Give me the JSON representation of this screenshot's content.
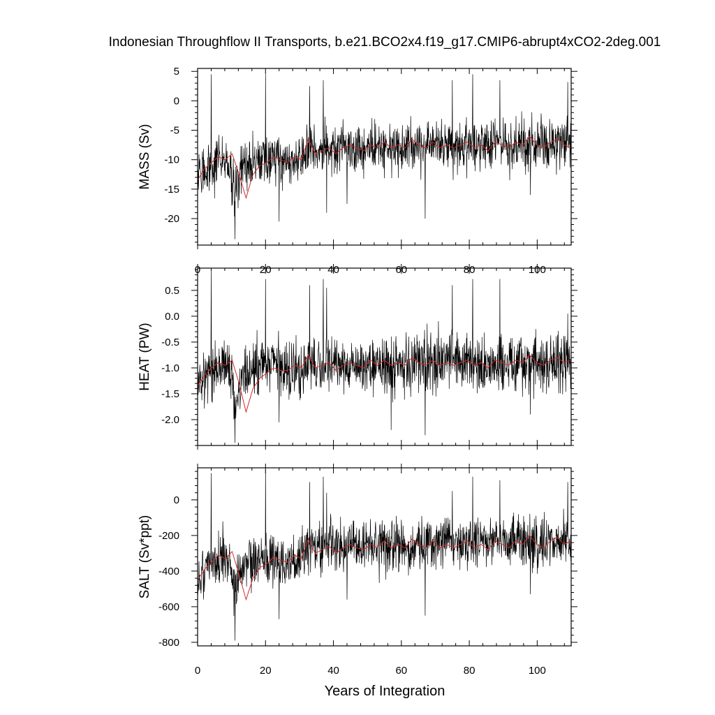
{
  "title": "Indonesian Throughflow II Transports, b.e21.BCO2x4.f19_g17.CMIP6-abrupt4xCO2-2deg.001",
  "xlabel": "Years of Integration",
  "colors": {
    "monthly": "#000000",
    "annual": "#d62728"
  },
  "chart_data": [
    {
      "type": "line",
      "ylabel": "MASS (Sv)",
      "xlim": [
        0,
        110
      ],
      "ylim": [
        -24.5,
        5.5
      ],
      "xticks": [
        0,
        20,
        40,
        60,
        80,
        100
      ],
      "xtick_labels": [
        "0",
        "20",
        "40",
        "60",
        "80",
        "100"
      ],
      "yticks": [
        5,
        0,
        -5,
        -10,
        -15,
        -20
      ],
      "ytick_labels": [
        "5",
        "0",
        "-5",
        "-10",
        "-15",
        "-20"
      ],
      "baseline": [
        [
          0,
          -13.5
        ],
        [
          2,
          -11.5
        ],
        [
          5,
          -10.5
        ],
        [
          8,
          -9.5
        ],
        [
          10,
          -12.5
        ],
        [
          11,
          -16.5
        ],
        [
          12,
          -13
        ],
        [
          14,
          -11
        ],
        [
          17,
          -10.5
        ],
        [
          20,
          -9.5
        ],
        [
          25,
          -10.5
        ],
        [
          30,
          -9.5
        ],
        [
          35,
          -8.5
        ],
        [
          40,
          -8
        ],
        [
          50,
          -8
        ],
        [
          60,
          -8
        ],
        [
          70,
          -7.5
        ],
        [
          80,
          -7.5
        ],
        [
          90,
          -7.5
        ],
        [
          100,
          -7.5
        ],
        [
          110,
          -7
        ]
      ],
      "amplitude": 3.3,
      "spikes": [
        [
          4,
          4.5
        ],
        [
          11,
          -23.5
        ],
        [
          20,
          4.5
        ],
        [
          24,
          -20.5
        ],
        [
          33,
          2.5
        ],
        [
          37,
          3.5
        ],
        [
          38,
          -19
        ],
        [
          44,
          -17.5
        ],
        [
          67,
          -20
        ],
        [
          75,
          3.5
        ],
        [
          81,
          4.5
        ],
        [
          89,
          3.5
        ],
        [
          98,
          -16
        ],
        [
          109,
          3.2
        ]
      ],
      "series": [
        {
          "name": "",
          "values": []
        },
        {
          "name": "",
          "values": [
            -13.5,
            -11.5,
            -10.5,
            -9.5,
            -10,
            -9,
            -12.5,
            -16.5,
            -12.5,
            -11,
            -10.5,
            -9.5,
            -10,
            -10.5,
            -9.5,
            -10,
            -6.5,
            -9,
            -8.5,
            -8,
            -9,
            -8,
            -7.5,
            -8,
            -8.5,
            -7.5,
            -8,
            -7,
            -8,
            -7.5,
            -8,
            -6.5,
            -7.5,
            -8,
            -7,
            -8,
            -7.5,
            -8,
            -7.5,
            -7,
            -8,
            -7.5,
            -8.5,
            -7,
            -7.5,
            -8,
            -7,
            -7.5,
            -6,
            -7.5,
            -8,
            -7,
            -6.5,
            -7.5,
            -8
          ]
        }
      ]
    },
    {
      "type": "line",
      "ylabel": "HEAT (PW)",
      "xlim": [
        0,
        110
      ],
      "ylim": [
        -2.5,
        0.93
      ],
      "xticks": [
        0,
        20,
        40,
        60,
        80,
        100
      ],
      "xtick_labels": [],
      "yticks": [
        0.5,
        0.0,
        -0.5,
        -1.0,
        -1.5,
        -2.0
      ],
      "ytick_labels": [
        "0.5",
        "0.0",
        "-0.5",
        "-1.0",
        "-1.5",
        "-2.0"
      ],
      "baseline": [
        [
          0,
          -1.3
        ],
        [
          2,
          -1.15
        ],
        [
          5,
          -1.0
        ],
        [
          8,
          -0.9
        ],
        [
          10,
          -1.3
        ],
        [
          11,
          -1.85
        ],
        [
          12,
          -1.4
        ],
        [
          14,
          -1.15
        ],
        [
          17,
          -1.05
        ],
        [
          20,
          -0.9
        ],
        [
          25,
          -1.05
        ],
        [
          30,
          -1.0
        ],
        [
          35,
          -0.95
        ],
        [
          40,
          -0.9
        ],
        [
          50,
          -0.95
        ],
        [
          60,
          -0.95
        ],
        [
          70,
          -0.85
        ],
        [
          80,
          -0.9
        ],
        [
          90,
          -0.9
        ],
        [
          100,
          -0.95
        ],
        [
          110,
          -0.85
        ]
      ],
      "amplitude": 0.42,
      "spikes": [
        [
          4,
          0.9
        ],
        [
          11,
          -2.45
        ],
        [
          20,
          0.72
        ],
        [
          24,
          -2.05
        ],
        [
          33,
          0.6
        ],
        [
          37,
          0.72
        ],
        [
          38,
          0.55
        ],
        [
          57,
          -2.2
        ],
        [
          67,
          -2.3
        ],
        [
          75,
          0.6
        ],
        [
          81,
          0.72
        ],
        [
          89,
          0.72
        ],
        [
          98,
          -1.9
        ],
        [
          109,
          0.05
        ]
      ],
      "series": [
        {
          "name": "",
          "values": []
        },
        {
          "name": "",
          "values": [
            -1.35,
            -1.15,
            -1.0,
            -0.9,
            -0.95,
            -0.85,
            -1.3,
            -1.85,
            -1.4,
            -1.2,
            -1.1,
            -1.0,
            -1.05,
            -1.05,
            -0.95,
            -1.0,
            -0.75,
            -1.0,
            -0.95,
            -0.9,
            -1.05,
            -0.95,
            -0.9,
            -0.95,
            -1.0,
            -0.85,
            -0.95,
            -0.85,
            -0.95,
            -0.9,
            -0.95,
            -0.8,
            -0.9,
            -0.95,
            -0.85,
            -0.95,
            -0.9,
            -0.95,
            -0.9,
            -0.85,
            -0.95,
            -0.9,
            -1.0,
            -0.85,
            -0.9,
            -0.95,
            -0.85,
            -0.9,
            -0.75,
            -0.9,
            -0.95,
            -0.85,
            -0.8,
            -0.9,
            -0.85
          ]
        }
      ]
    },
    {
      "type": "line",
      "ylabel": "SALT (Sv*ppt)",
      "xlim": [
        0,
        110
      ],
      "ylim": [
        -820,
        180
      ],
      "xticks": [
        0,
        20,
        40,
        60,
        80,
        100
      ],
      "xtick_labels": [
        "0",
        "20",
        "40",
        "60",
        "80",
        "100"
      ],
      "yticks": [
        0,
        -200,
        -400,
        -600,
        -800
      ],
      "ytick_labels": [
        "0",
        "-200",
        "-400",
        "-600",
        "-800"
      ],
      "baseline": [
        [
          0,
          -450
        ],
        [
          2,
          -390
        ],
        [
          5,
          -350
        ],
        [
          8,
          -310
        ],
        [
          10,
          -420
        ],
        [
          11,
          -560
        ],
        [
          12,
          -440
        ],
        [
          14,
          -370
        ],
        [
          17,
          -350
        ],
        [
          20,
          -310
        ],
        [
          25,
          -350
        ],
        [
          30,
          -310
        ],
        [
          35,
          -280
        ],
        [
          40,
          -260
        ],
        [
          50,
          -260
        ],
        [
          60,
          -260
        ],
        [
          70,
          -240
        ],
        [
          80,
          -240
        ],
        [
          90,
          -240
        ],
        [
          100,
          -240
        ],
        [
          110,
          -230
        ]
      ],
      "amplitude": 110,
      "spikes": [
        [
          4,
          150
        ],
        [
          11,
          -790
        ],
        [
          20,
          170
        ],
        [
          24,
          -670
        ],
        [
          33,
          100
        ],
        [
          37,
          130
        ],
        [
          38,
          40
        ],
        [
          44,
          -560
        ],
        [
          67,
          -650
        ],
        [
          75,
          50
        ],
        [
          81,
          130
        ],
        [
          89,
          110
        ],
        [
          98,
          -530
        ],
        [
          109,
          100
        ]
      ],
      "series": [
        {
          "name": "",
          "values": []
        },
        {
          "name": "",
          "values": [
            -450,
            -390,
            -350,
            -310,
            -330,
            -290,
            -420,
            -560,
            -440,
            -380,
            -360,
            -320,
            -340,
            -350,
            -310,
            -330,
            -220,
            -300,
            -280,
            -260,
            -300,
            -270,
            -250,
            -270,
            -280,
            -250,
            -270,
            -230,
            -270,
            -250,
            -270,
            -220,
            -250,
            -270,
            -230,
            -270,
            -250,
            -270,
            -250,
            -230,
            -270,
            -250,
            -280,
            -230,
            -250,
            -270,
            -230,
            -250,
            -200,
            -250,
            -270,
            -230,
            -210,
            -250,
            -230
          ]
        }
      ]
    }
  ]
}
